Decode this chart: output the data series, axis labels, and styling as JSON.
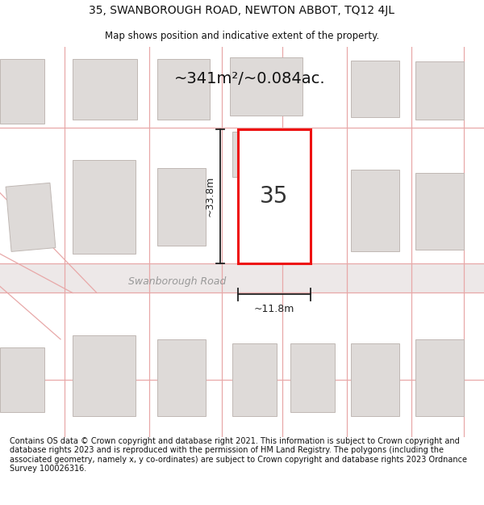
{
  "title_line1": "35, SWANBOROUGH ROAD, NEWTON ABBOT, TQ12 4JL",
  "title_line2": "Map shows position and indicative extent of the property.",
  "area_text": "~341m²/~0.084ac.",
  "label_number": "35",
  "dim_width": "~11.8m",
  "dim_height": "~33.8m",
  "road_name": "Swanborough Road",
  "footer_text": "Contains OS data © Crown copyright and database right 2021. This information is subject to Crown copyright and database rights 2023 and is reproduced with the permission of HM Land Registry. The polygons (including the associated geometry, namely x, y co-ordinates) are subject to Crown copyright and database rights 2023 Ordnance Survey 100026316.",
  "map_bg": "#f7f4f4",
  "building_fill": "#dedad8",
  "building_edge": "#c0b8b4",
  "highlight_fill": "#ffffff",
  "highlight_edge": "#ee1111",
  "road_line_color": "#e8a8a8",
  "dim_color": "#222222",
  "text_color": "#111111",
  "road_text_color": "#999999"
}
